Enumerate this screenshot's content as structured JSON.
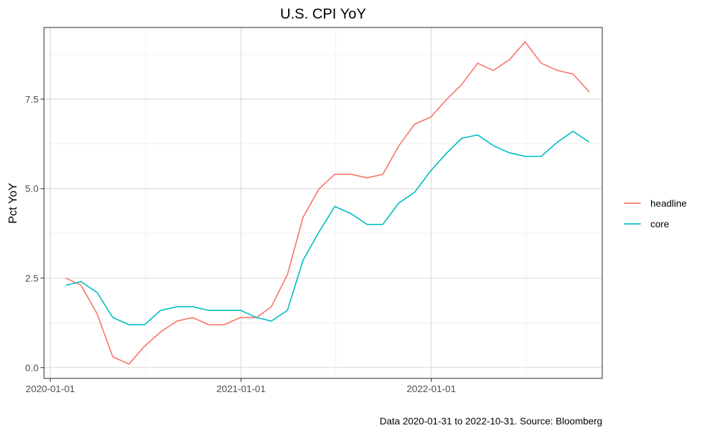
{
  "chart_data": {
    "type": "line",
    "title": "U.S. CPI YoY",
    "xlabel": "",
    "ylabel": "Pct YoY",
    "caption": "Data 2020-01-31 to 2022-10-31.  Source: Bloomberg",
    "x_ticks": [
      "2020-01-01",
      "2021-01-01",
      "2022-01-01"
    ],
    "y_ticks": [
      "0.0",
      "2.5",
      "5.0",
      "7.5"
    ],
    "y_tick_values": [
      0,
      2.5,
      5.0,
      7.5
    ],
    "ylim": [
      -0.3,
      9.5
    ],
    "xlim": [
      "2019-12-20",
      "2022-11-25"
    ],
    "grid": true,
    "legend_position": "right",
    "x": [
      "2020-01-31",
      "2020-02-29",
      "2020-03-31",
      "2020-04-30",
      "2020-05-31",
      "2020-06-30",
      "2020-07-31",
      "2020-08-31",
      "2020-09-30",
      "2020-10-31",
      "2020-11-30",
      "2020-12-31",
      "2021-01-31",
      "2021-02-28",
      "2021-03-31",
      "2021-04-30",
      "2021-05-31",
      "2021-06-30",
      "2021-07-31",
      "2021-08-31",
      "2021-09-30",
      "2021-10-31",
      "2021-11-30",
      "2021-12-31",
      "2022-01-31",
      "2022-02-28",
      "2022-03-31",
      "2022-04-30",
      "2022-05-31",
      "2022-06-30",
      "2022-07-31",
      "2022-08-31",
      "2022-09-30",
      "2022-10-31"
    ],
    "series": [
      {
        "name": "headline",
        "color": "#f8766d",
        "values": [
          2.5,
          2.3,
          1.5,
          0.3,
          0.1,
          0.6,
          1.0,
          1.3,
          1.4,
          1.2,
          1.2,
          1.4,
          1.4,
          1.7,
          2.6,
          4.2,
          5.0,
          5.4,
          5.4,
          5.3,
          5.4,
          6.2,
          6.8,
          7.0,
          7.5,
          7.9,
          8.5,
          8.3,
          8.6,
          9.1,
          8.5,
          8.3,
          8.2,
          7.7
        ]
      },
      {
        "name": "core",
        "color": "#00bfc4",
        "values": [
          2.3,
          2.4,
          2.1,
          1.4,
          1.2,
          1.2,
          1.6,
          1.7,
          1.7,
          1.6,
          1.6,
          1.6,
          1.4,
          1.3,
          1.6,
          3.0,
          3.8,
          4.5,
          4.3,
          4.0,
          4.0,
          4.6,
          4.9,
          5.5,
          6.0,
          6.4,
          6.5,
          6.2,
          6.0,
          5.9,
          5.9,
          6.3,
          6.6,
          6.3
        ]
      }
    ]
  }
}
